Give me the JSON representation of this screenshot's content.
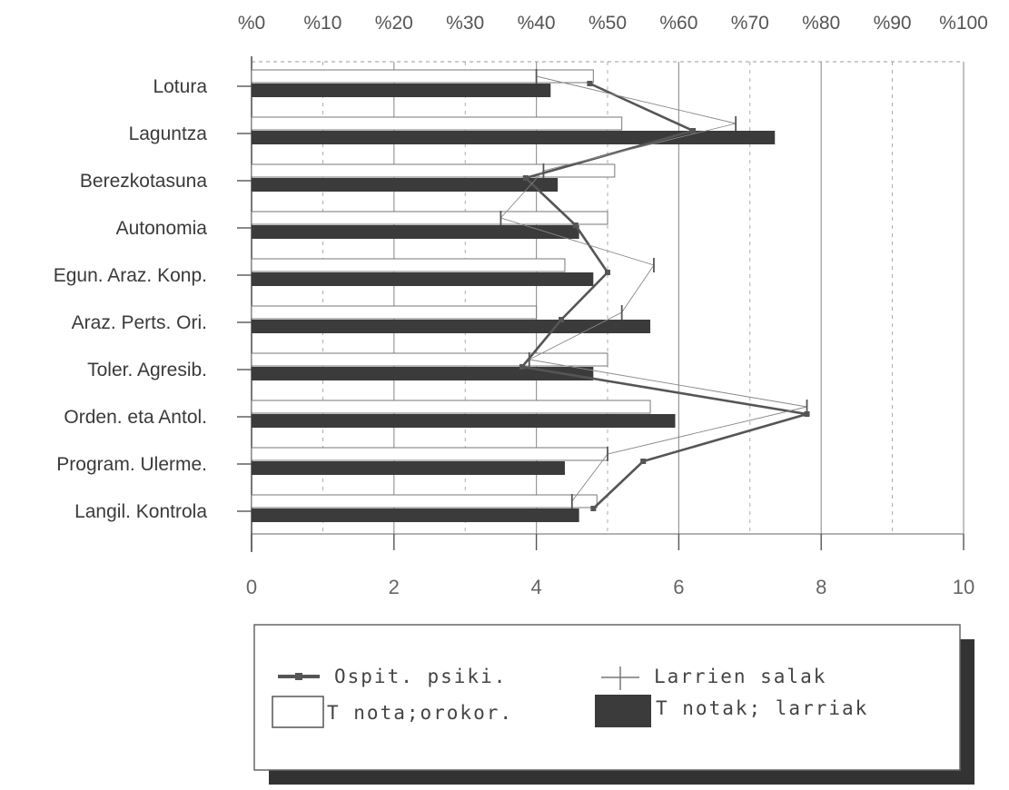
{
  "chart_data": {
    "type": "bar",
    "orientation": "horizontal",
    "categories": [
      "Lotura",
      "Laguntza",
      "Berezkotasuna",
      "Autonomia",
      "Egun. Araz. Konp.",
      "Araz. Perts. Ori.",
      "Toler. Agresib.",
      "Orden. eta Antol.",
      "Program. Ulerme.",
      "Langil. Kontrola"
    ],
    "top_ticks": [
      "%0",
      "%10",
      "%20",
      "%30",
      "%40",
      "%50",
      "%60",
      "%70",
      "%80",
      "%90",
      "%100"
    ],
    "bottom_ticks": [
      "0",
      "2",
      "4",
      "6",
      "8",
      "10"
    ],
    "xlim": [
      0,
      10
    ],
    "series": [
      {
        "name": "T nota;orokor.",
        "kind": "bar",
        "color": "#ffffff",
        "values": [
          4.8,
          5.2,
          5.1,
          5.0,
          4.4,
          4.0,
          5.0,
          5.6,
          5.0,
          4.85
        ]
      },
      {
        "name": "T notak; larriak",
        "kind": "bar",
        "color": "#3b3b3b",
        "values": [
          4.2,
          7.35,
          4.3,
          4.6,
          4.8,
          5.6,
          4.8,
          5.95,
          4.4,
          4.6
        ]
      },
      {
        "name": "Ospit. psiki.",
        "kind": "line",
        "color": "#555555",
        "values": [
          4.75,
          6.2,
          3.85,
          4.55,
          5.0,
          4.35,
          3.8,
          7.8,
          5.5,
          4.8
        ]
      },
      {
        "name": "Larrien salak",
        "kind": "line",
        "color": "#888888",
        "values": [
          4.0,
          6.8,
          4.1,
          3.5,
          5.65,
          5.2,
          3.9,
          7.8,
          5.0,
          4.5
        ]
      }
    ],
    "grid": true,
    "legend_position": "bottom"
  }
}
